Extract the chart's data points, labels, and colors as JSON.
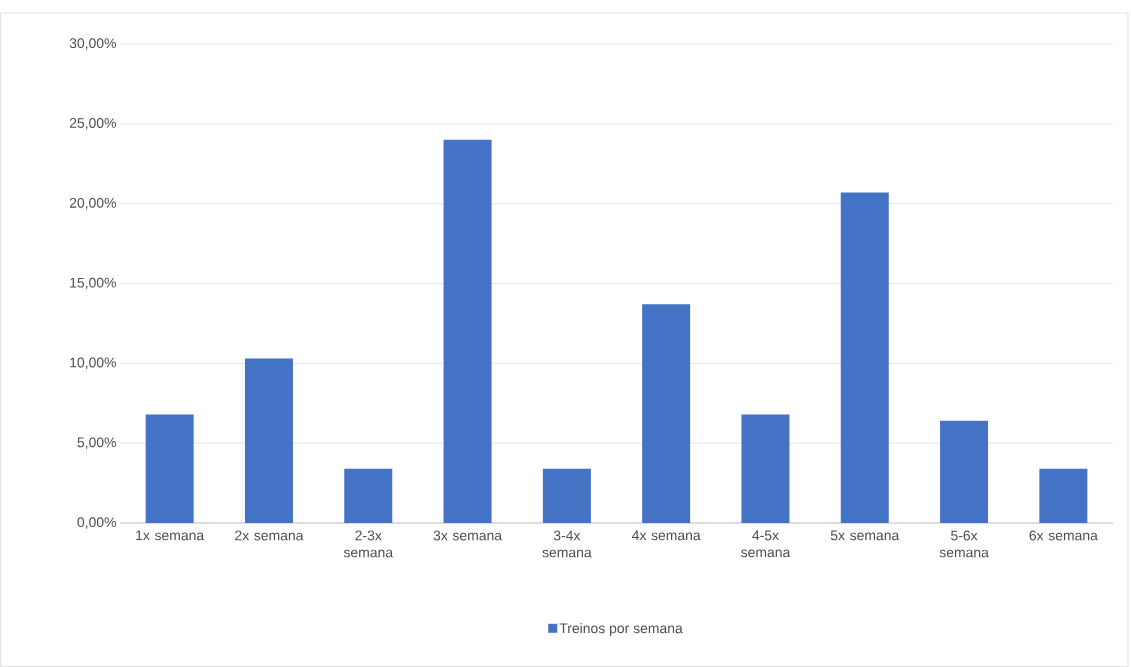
{
  "chart_data": {
    "type": "bar",
    "categories": [
      "1x semana",
      "2x semana",
      "2-3x semana",
      "3x semana",
      "3-4x semana",
      "4x semana",
      "4-5x semana",
      "5x semana",
      "5-6x semana",
      "6x semana"
    ],
    "series": [
      {
        "name": "Treinos por semana",
        "color": "#4472c4",
        "values": [
          6.8,
          10.3,
          3.4,
          24.0,
          3.4,
          13.7,
          6.8,
          20.7,
          6.4,
          3.4
        ]
      }
    ],
    "ylim": [
      0,
      30
    ],
    "yticks": [
      {
        "value": 0,
        "label": "0,00%"
      },
      {
        "value": 5,
        "label": "5,00%"
      },
      {
        "value": 10,
        "label": "10,00%"
      },
      {
        "value": 15,
        "label": "15,00%"
      },
      {
        "value": 20,
        "label": "20,00%"
      },
      {
        "value": 25,
        "label": "25,00%"
      },
      {
        "value": 30,
        "label": "30,00%"
      }
    ],
    "grid": "y",
    "legend": "bottom"
  }
}
